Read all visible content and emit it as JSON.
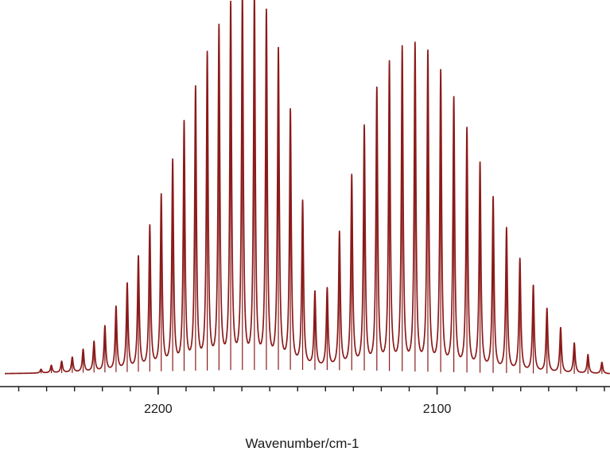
{
  "chart_data": {
    "type": "line",
    "title": "",
    "xlabel": "Wavenumber/cm-1",
    "ylabel": "",
    "x_reversed": true,
    "xlim": [
      2255,
      2038
    ],
    "ylim": [
      0,
      1
    ],
    "grid": false,
    "legend": "none",
    "x_ticks_major": [
      2200,
      2100
    ],
    "x_ticks_minor": [
      2250,
      2240,
      2230,
      2220,
      2210,
      2190,
      2180,
      2170,
      2160,
      2150,
      2140,
      2130,
      2120,
      2110,
      2090,
      2080,
      2070,
      2060,
      2050,
      2040
    ],
    "line_color": "#8B1A1A",
    "baseline": 0.02,
    "series": [
      {
        "branch": "R",
        "peaks": [
          {
            "x": 2242.0,
            "y": 0.01
          },
          {
            "x": 2238.3,
            "y": 0.02
          },
          {
            "x": 2234.6,
            "y": 0.03
          },
          {
            "x": 2230.8,
            "y": 0.04
          },
          {
            "x": 2226.9,
            "y": 0.06
          },
          {
            "x": 2223.0,
            "y": 0.08
          },
          {
            "x": 2219.1,
            "y": 0.12
          },
          {
            "x": 2215.1,
            "y": 0.17
          },
          {
            "x": 2211.1,
            "y": 0.23
          },
          {
            "x": 2207.1,
            "y": 0.3
          },
          {
            "x": 2203.0,
            "y": 0.38
          },
          {
            "x": 2198.9,
            "y": 0.46
          },
          {
            "x": 2194.8,
            "y": 0.55
          },
          {
            "x": 2190.7,
            "y": 0.65
          },
          {
            "x": 2186.6,
            "y": 0.74
          },
          {
            "x": 2182.4,
            "y": 0.83
          },
          {
            "x": 2178.2,
            "y": 0.9
          },
          {
            "x": 2174.0,
            "y": 0.96
          },
          {
            "x": 2169.8,
            "y": 0.99
          },
          {
            "x": 2165.5,
            "y": 0.99
          },
          {
            "x": 2161.2,
            "y": 0.94
          },
          {
            "x": 2156.9,
            "y": 0.84
          },
          {
            "x": 2152.6,
            "y": 0.68
          },
          {
            "x": 2148.2,
            "y": 0.44
          },
          {
            "x": 2143.8,
            "y": 0.2
          }
        ]
      },
      {
        "branch": "P",
        "peaks": [
          {
            "x": 2139.4,
            "y": 0.21
          },
          {
            "x": 2135.0,
            "y": 0.36
          },
          {
            "x": 2130.6,
            "y": 0.51
          },
          {
            "x": 2126.1,
            "y": 0.64
          },
          {
            "x": 2121.6,
            "y": 0.74
          },
          {
            "x": 2117.1,
            "y": 0.81
          },
          {
            "x": 2112.5,
            "y": 0.85
          },
          {
            "x": 2107.9,
            "y": 0.86
          },
          {
            "x": 2103.3,
            "y": 0.84
          },
          {
            "x": 2098.7,
            "y": 0.79
          },
          {
            "x": 2094.0,
            "y": 0.72
          },
          {
            "x": 2089.3,
            "y": 0.64
          },
          {
            "x": 2084.6,
            "y": 0.55
          },
          {
            "x": 2079.9,
            "y": 0.46
          },
          {
            "x": 2075.1,
            "y": 0.38
          },
          {
            "x": 2070.3,
            "y": 0.3
          },
          {
            "x": 2065.5,
            "y": 0.23
          },
          {
            "x": 2060.6,
            "y": 0.17
          },
          {
            "x": 2055.7,
            "y": 0.12
          },
          {
            "x": 2050.8,
            "y": 0.08
          },
          {
            "x": 2045.9,
            "y": 0.05
          },
          {
            "x": 2040.9,
            "y": 0.03
          }
        ]
      }
    ]
  }
}
